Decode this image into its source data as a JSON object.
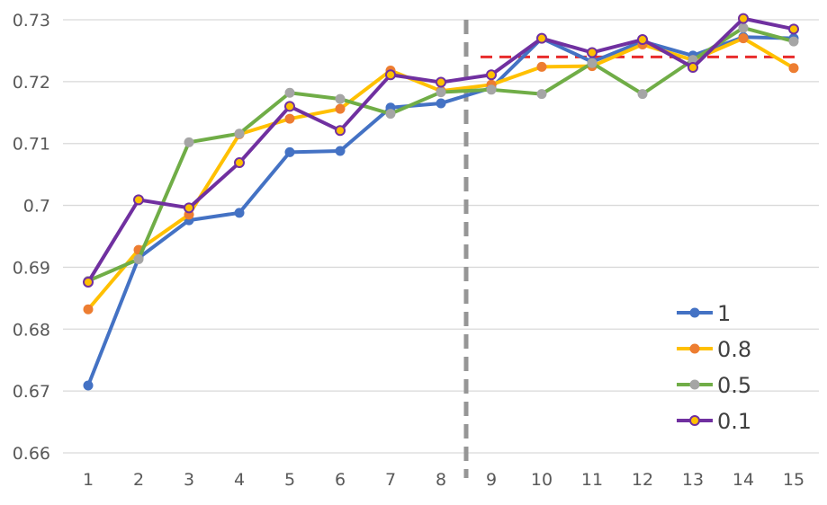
{
  "chart_data": {
    "type": "line",
    "title": "",
    "xlabel": "",
    "ylabel": "",
    "categories": [
      "1",
      "2",
      "3",
      "4",
      "5",
      "6",
      "7",
      "8",
      "9",
      "10",
      "11",
      "12",
      "13",
      "14",
      "15"
    ],
    "ylim": [
      0.66,
      0.73
    ],
    "yticks": [
      "0.66",
      "0.67",
      "0.68",
      "0.69",
      "0.7",
      "0.71",
      "0.72",
      "0.73"
    ],
    "grid": "horizontal",
    "legend_position": "bottom-right",
    "series": [
      {
        "name": "1",
        "line_color": "#4472C4",
        "marker_color": "#4472C4",
        "values": [
          0.6709,
          0.6915,
          0.6976,
          0.6988,
          0.7086,
          0.7088,
          0.7158,
          0.7165,
          0.719,
          0.727,
          0.7232,
          0.7265,
          0.7242,
          0.7272,
          0.727
        ]
      },
      {
        "name": "0.8",
        "line_color": "#FFC000",
        "marker_color": "#ED7D31",
        "values": [
          0.6832,
          0.6928,
          0.6985,
          0.7115,
          0.714,
          0.7156,
          0.7218,
          0.7185,
          0.7195,
          0.7224,
          0.7225,
          0.726,
          0.7235,
          0.727,
          0.7222
        ]
      },
      {
        "name": "0.5",
        "line_color": "#70AD47",
        "marker_color": "#A5A5A5",
        "values": [
          0.6878,
          0.6913,
          0.7102,
          0.7116,
          0.7182,
          0.7172,
          0.7148,
          0.7183,
          0.7187,
          0.718,
          0.723,
          0.718,
          0.7235,
          0.7287,
          0.7265
        ]
      },
      {
        "name": "0.1",
        "line_color": "#7030A0",
        "marker_color": "#FFC000",
        "values": [
          0.6876,
          0.7009,
          0.6996,
          0.7069,
          0.716,
          0.7121,
          0.7211,
          0.7199,
          0.7211,
          0.727,
          0.7247,
          0.7268,
          0.7223,
          0.7302,
          0.7285
        ]
      }
    ],
    "annotations": [
      {
        "type": "vertical-dashed-line",
        "between": [
          "8",
          "9"
        ],
        "color": "#969696"
      },
      {
        "type": "horizontal-dashed-line",
        "y": 0.724,
        "from": "9",
        "to": "15",
        "color": "#E82C2C"
      }
    ]
  }
}
